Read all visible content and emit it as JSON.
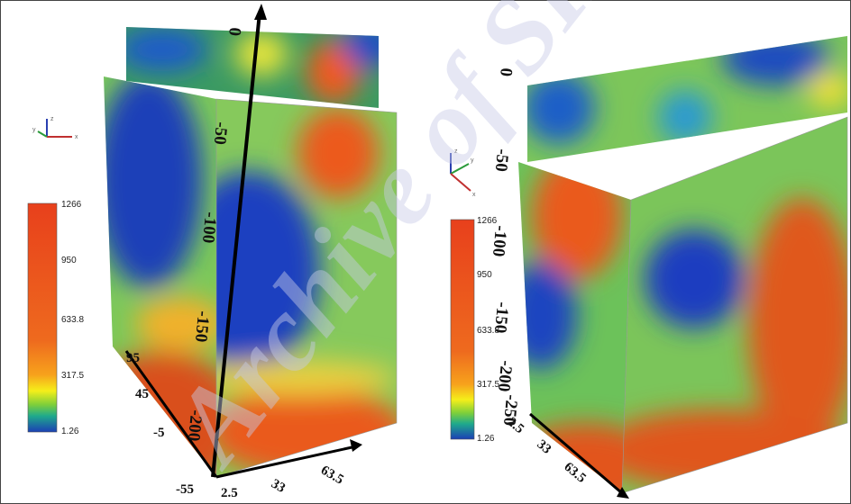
{
  "left_panel": {
    "colorbar": [
      "1266",
      "950",
      "633.8",
      "317.5",
      "1.26"
    ],
    "depth_ticks": [
      "0",
      "-50",
      "-100",
      "-150",
      "-200"
    ],
    "side_ticks": [
      "95",
      "45",
      "-5",
      "-55"
    ],
    "bottom_ticks": [
      "2.5",
      "33",
      "63.5"
    ],
    "triad": [
      "z",
      "y",
      "x"
    ]
  },
  "right_panel": {
    "colorbar": [
      "1266",
      "950",
      "633.8",
      "317.5",
      "1.26"
    ],
    "depth_ticks": [
      "0",
      "-50",
      "-100",
      "-150",
      "-200",
      "-250"
    ],
    "bottom_ticks": [
      "2.5",
      "33",
      "63.5"
    ],
    "triad": [
      "z",
      "y",
      "x"
    ]
  },
  "watermark": "Archive of SID"
}
